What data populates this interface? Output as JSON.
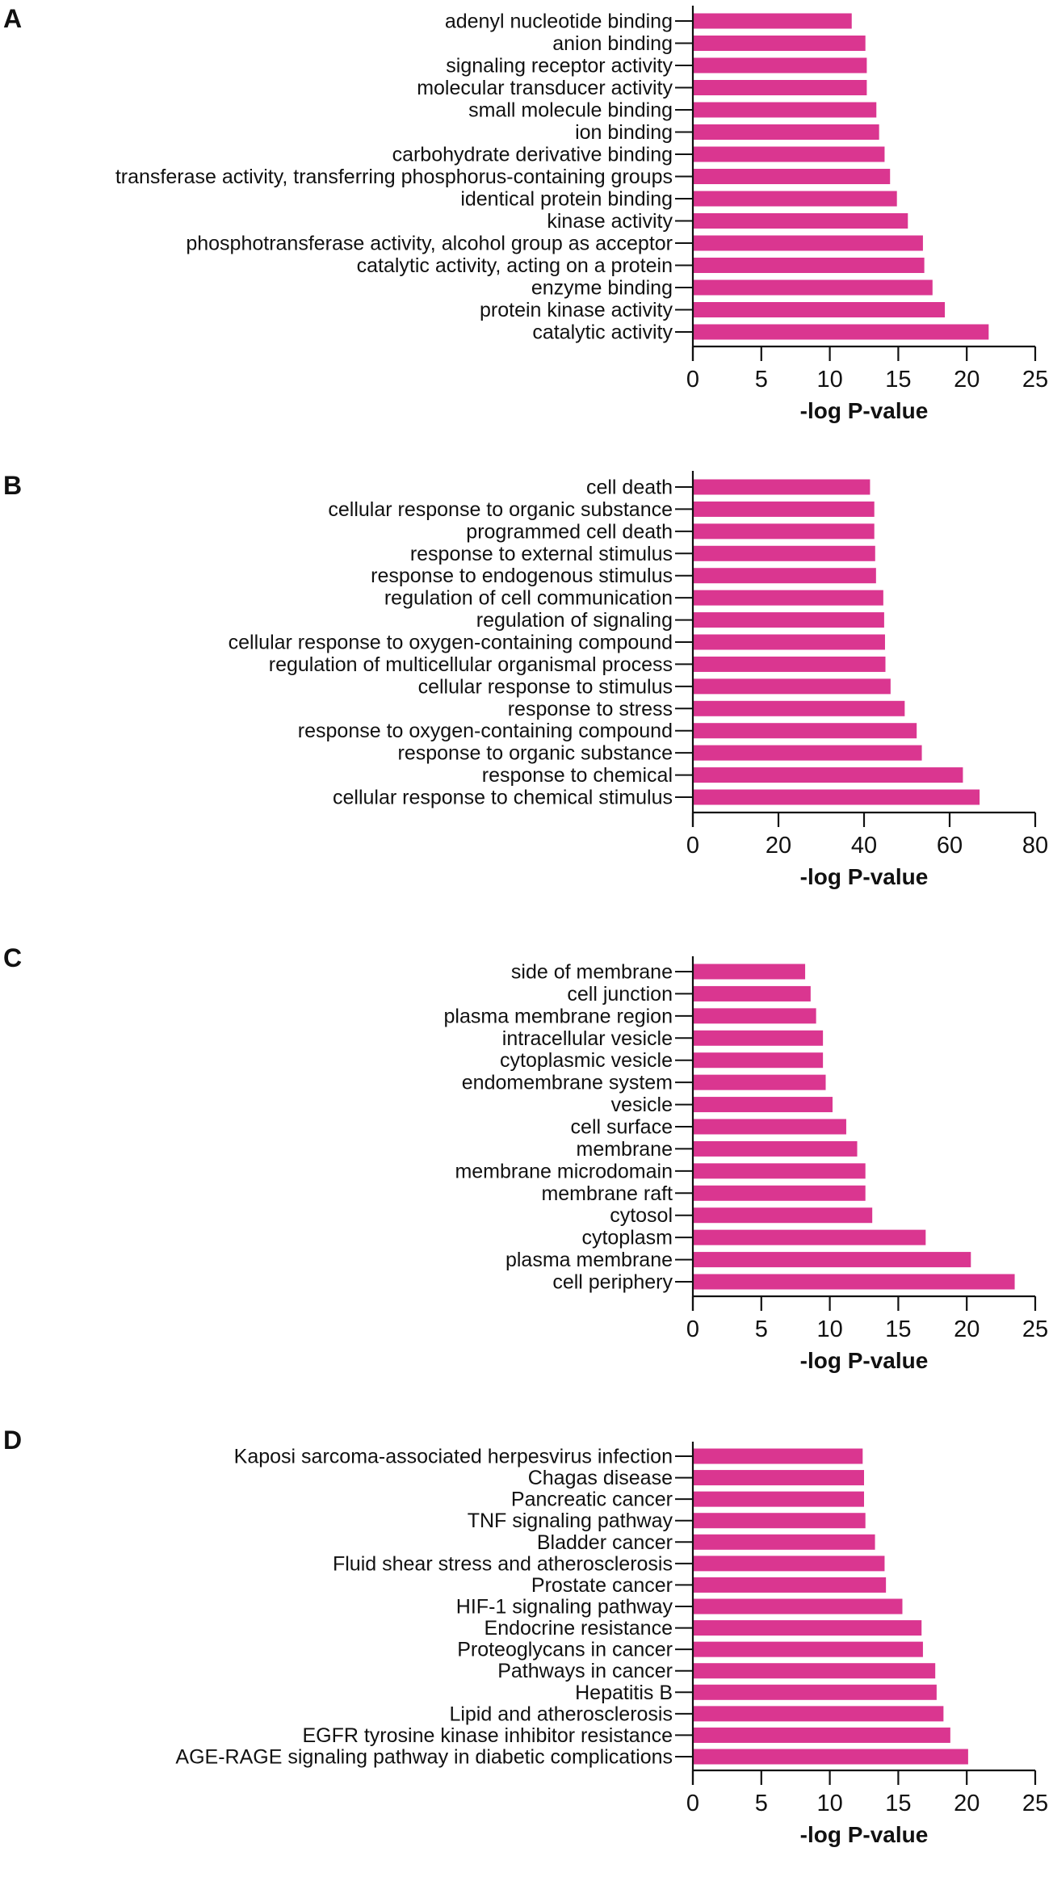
{
  "colors": {
    "bar": "#DA3690",
    "axis": "#111111"
  },
  "chart_data": [
    {
      "type": "bar",
      "orientation": "horizontal",
      "panel": "A",
      "xlabel": "-log P-value",
      "xlim": [
        0,
        25
      ],
      "xticks": [
        0,
        5,
        10,
        15,
        20,
        25
      ],
      "categories": [
        "adenyl nucleotide binding",
        "anion binding",
        "signaling receptor activity",
        "molecular transducer activity",
        "small molecule binding",
        "ion binding",
        "carbohydrate derivative binding",
        "transferase activity, transferring phosphorus-containing groups",
        "identical protein binding",
        "kinase activity",
        "phosphotransferase activity, alcohol group as acceptor",
        "catalytic activity, acting on a protein",
        "enzyme binding",
        "protein kinase activity",
        "catalytic activity"
      ],
      "values": [
        11.6,
        12.6,
        12.7,
        12.7,
        13.4,
        13.6,
        14.0,
        14.4,
        14.9,
        15.7,
        16.8,
        16.9,
        17.5,
        18.4,
        21.6
      ]
    },
    {
      "type": "bar",
      "orientation": "horizontal",
      "panel": "B",
      "xlabel": "-log P-value",
      "xlim": [
        0,
        80
      ],
      "xticks": [
        0,
        20,
        40,
        60,
        80
      ],
      "categories": [
        "cell death",
        "cellular response to organic substance",
        "programmed cell death",
        "response to external stimulus",
        "response to endogenous stimulus",
        "regulation of cell communication",
        "regulation of signaling",
        "cellular response to oxygen-containing compound",
        "regulation of multicellular organismal process",
        "cellular response to stimulus",
        "response to stress",
        "response to oxygen-containing compound",
        "response to organic substance",
        "response to chemical",
        "cellular response to chemical stimulus"
      ],
      "values": [
        41.4,
        42.4,
        42.4,
        42.6,
        42.8,
        44.5,
        44.7,
        44.9,
        45.0,
        46.2,
        49.5,
        52.3,
        53.5,
        63.1,
        67.0
      ]
    },
    {
      "type": "bar",
      "orientation": "horizontal",
      "panel": "C",
      "xlabel": "-log P-value",
      "xlim": [
        0,
        25
      ],
      "xticks": [
        0,
        5,
        10,
        15,
        20,
        25
      ],
      "categories": [
        "side of membrane",
        "cell junction",
        "plasma membrane region",
        "intracellular vesicle",
        "cytoplasmic vesicle",
        "endomembrane system",
        "vesicle",
        "cell surface",
        "membrane",
        "membrane microdomain",
        "membrane raft",
        "cytosol",
        "cytoplasm",
        "plasma membrane",
        "cell periphery"
      ],
      "values": [
        8.2,
        8.6,
        9.0,
        9.5,
        9.5,
        9.7,
        10.2,
        11.2,
        12.0,
        12.6,
        12.6,
        13.1,
        17.0,
        20.3,
        23.5
      ]
    },
    {
      "type": "bar",
      "orientation": "horizontal",
      "panel": "D",
      "xlabel": "-log P-value",
      "xlim": [
        0,
        25
      ],
      "xticks": [
        0,
        5,
        10,
        15,
        20,
        25
      ],
      "categories": [
        "Kaposi sarcoma-associated herpesvirus infection",
        "Chagas disease",
        "Pancreatic cancer",
        "TNF signaling pathway",
        "Bladder cancer",
        "Fluid shear stress and atherosclerosis",
        "Prostate cancer",
        "HIF-1 signaling pathway",
        "Endocrine resistance",
        "Proteoglycans in cancer",
        "Pathways in cancer",
        "Hepatitis B",
        "Lipid and atherosclerosis",
        "EGFR tyrosine kinase inhibitor resistance",
        "AGE-RAGE signaling pathway in diabetic complications"
      ],
      "values": [
        12.4,
        12.5,
        12.5,
        12.6,
        13.3,
        14.0,
        14.1,
        15.3,
        16.7,
        16.8,
        17.7,
        17.8,
        18.3,
        18.8,
        20.1
      ]
    }
  ]
}
